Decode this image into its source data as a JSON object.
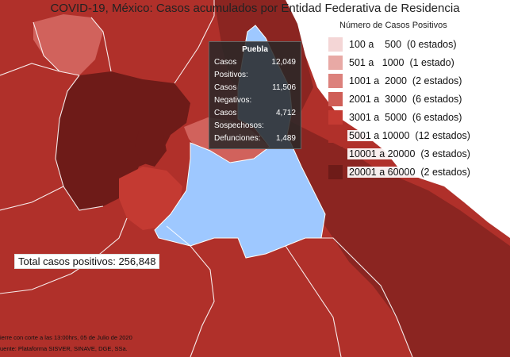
{
  "title": "COVID-19, México: Casos acumulados por Entidad Federativa de Residencia",
  "legend": {
    "title": "Número de Casos Positivos",
    "items": [
      {
        "label": "100 a    500  (0 estados)",
        "color": "#f4d6d6"
      },
      {
        "label": "501 a   1000  (1 estado)",
        "color": "#e8a9a5"
      },
      {
        "label": "1001 a  2000  (2 estados)",
        "color": "#dc817c"
      },
      {
        "label": "2001 a  3000  (6 estados)",
        "color": "#cf5d56"
      },
      {
        "label": "3001 a  5000  (6 estados)",
        "color": "#c43a32"
      },
      {
        "label": "5001 a 10000  (12 estados)",
        "color": "#b0302a"
      },
      {
        "label": "10001 a 20000  (3 estados)",
        "color": "#8b2521"
      },
      {
        "label": "20001 a 60000  (2 estados)",
        "color": "#6e1b18"
      }
    ]
  },
  "total": "Total casos positivos: 256,848",
  "tooltip": {
    "state": "Puebla",
    "rows": [
      {
        "label": "Casos Positivos:",
        "value": "12,049"
      },
      {
        "label": "Casos Negativos:",
        "value": "11,506"
      },
      {
        "label": "Casos Sospechosos:",
        "value": "4,712"
      },
      {
        "label": "Defunciones:",
        "value": "1,489"
      }
    ]
  },
  "footer": {
    "line1": "ierre con corte a las 13:00hrs, 05 de Julio de 2020",
    "line2": "uente: Plataforma SISVER, SINAVE, DGE, SSa."
  },
  "colors": {
    "base": "#b0302a",
    "dark": "#8b2521",
    "darkest": "#6e1b18",
    "medium": "#c43a32",
    "light": "#d1625c",
    "highlight": "#9ec8ff",
    "sea": "#ffffff"
  }
}
